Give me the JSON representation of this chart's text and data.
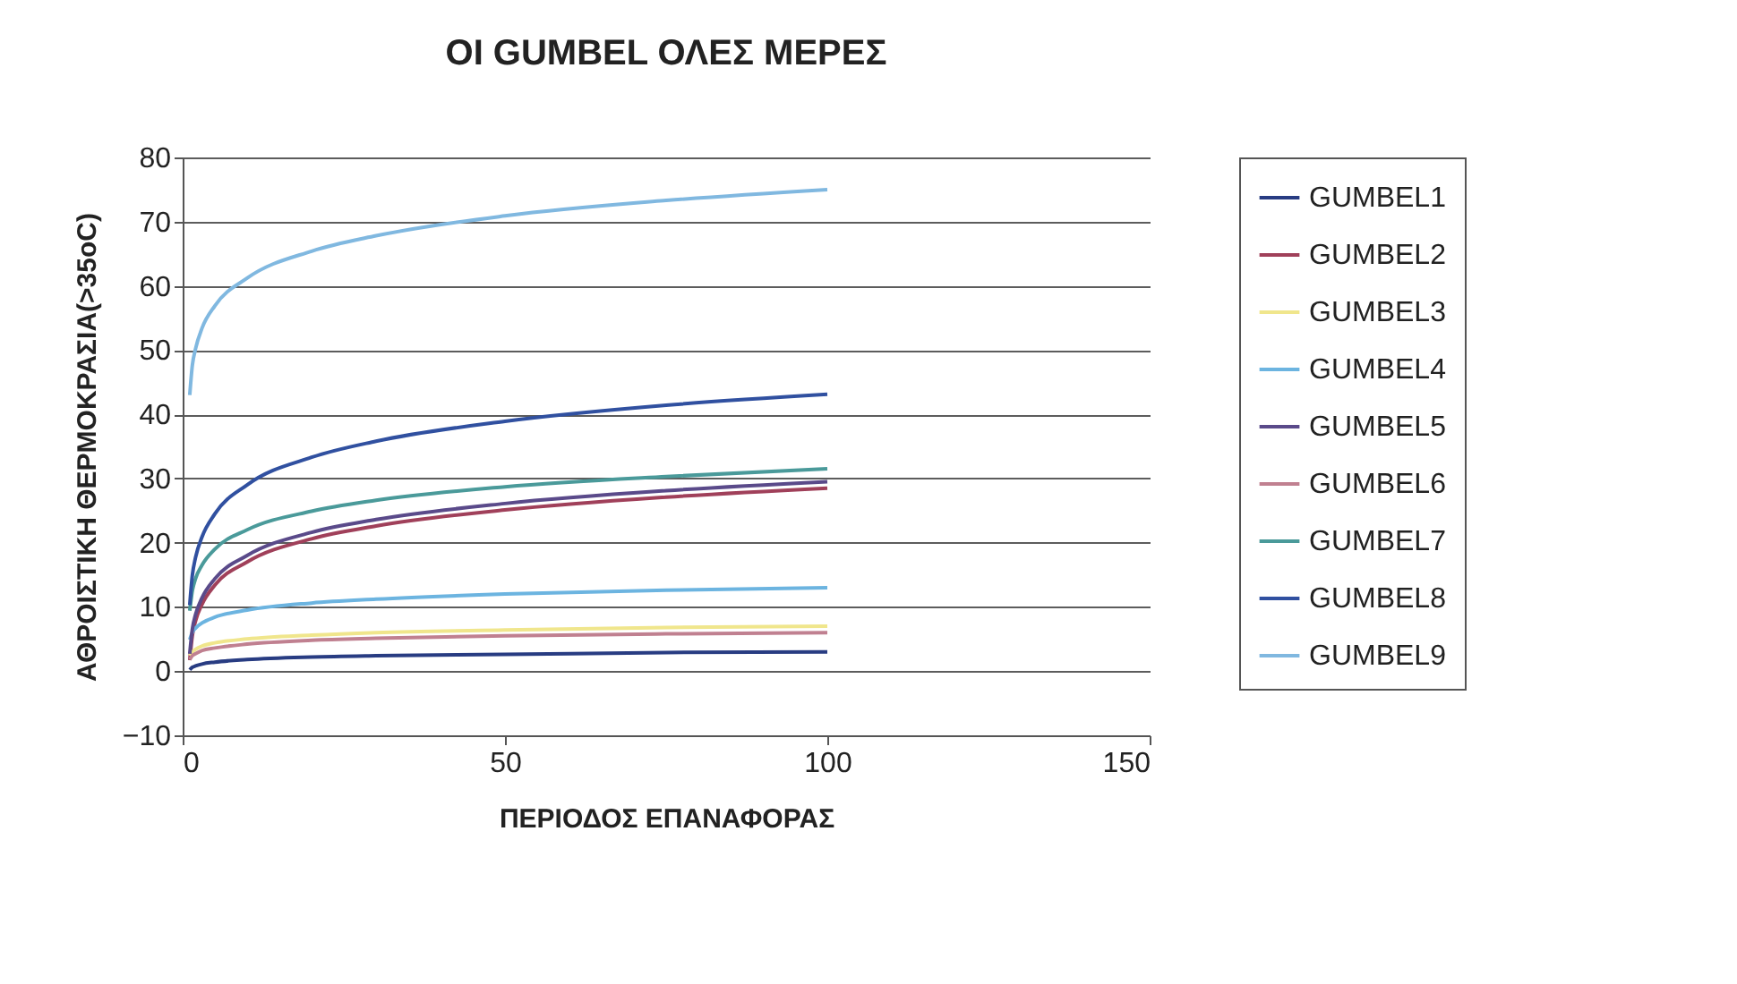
{
  "chart_data": {
    "type": "line",
    "title": "ΟΙ GUMBEL ΟΛΕΣ ΜΕΡΕΣ",
    "xlabel": "ΠΕΡΙΟΔΟΣ ΕΠΑΝΑΦΟΡΑΣ",
    "ylabel": "ΑΘΡΟΙΣΤΙΚΗ ΘΕΡΜΟΚΡΑΣΙΑ(>35oC)",
    "x": [
      1.1,
      1.5,
      2,
      3,
      5,
      10,
      20,
      30,
      50,
      75,
      100
    ],
    "series": [
      {
        "name": "GUMBEL1",
        "color": "#283c82",
        "values": [
          0.2,
          0.6,
          0.8,
          1.1,
          1.4,
          1.8,
          2.2,
          2.4,
          2.6,
          2.9,
          3.0
        ]
      },
      {
        "name": "GUMBEL2",
        "color": "#a0405a",
        "values": [
          1.7,
          5.5,
          7.8,
          10.4,
          13.4,
          17,
          20.6,
          22.6,
          25.1,
          27.1,
          28.5
        ]
      },
      {
        "name": "GUMBEL3",
        "color": "#f0e68c",
        "values": [
          2.4,
          3.0,
          3.4,
          3.9,
          4.4,
          5.0,
          5.6,
          6.0,
          6.4,
          6.8,
          7.0
        ]
      },
      {
        "name": "GUMBEL4",
        "color": "#6cb4e0",
        "values": [
          4.9,
          6.0,
          6.7,
          7.5,
          8.4,
          9.5,
          10.6,
          11.2,
          12.0,
          12.6,
          13.0
        ]
      },
      {
        "name": "GUMBEL5",
        "color": "#5a4a8a",
        "values": [
          2.7,
          6.5,
          8.8,
          11.4,
          14.4,
          18,
          21.6,
          23.6,
          26.1,
          28.1,
          29.5
        ]
      },
      {
        "name": "GUMBEL6",
        "color": "#c08090",
        "values": [
          1.8,
          2.4,
          2.7,
          3.2,
          3.6,
          4.2,
          4.8,
          5.1,
          5.5,
          5.8,
          6.0
        ]
      },
      {
        "name": "GUMBEL7",
        "color": "#4a9a9a",
        "values": [
          9.4,
          12.5,
          14.4,
          16.5,
          19.0,
          22,
          24.9,
          26.6,
          28.7,
          30.3,
          31.5
        ]
      },
      {
        "name": "GUMBEL8",
        "color": "#3050a0",
        "values": [
          10.3,
          14.9,
          17.7,
          20.9,
          24.5,
          29,
          33.3,
          35.8,
          38.9,
          41.4,
          43.1
        ]
      },
      {
        "name": "GUMBEL9",
        "color": "#80b8e0",
        "values": [
          43,
          47.6,
          50.2,
          53.4,
          56.9,
          61.2,
          65.4,
          67.8,
          70.9,
          73.3,
          75
        ]
      }
    ],
    "xlim": [
      0,
      150
    ],
    "xticks": [
      0,
      50,
      100,
      150
    ],
    "ylim": [
      -10,
      80
    ],
    "yticks": [
      -10,
      0,
      10,
      20,
      30,
      40,
      50,
      60,
      70,
      80
    ],
    "grid": "y",
    "legend": "right",
    "marker": "none",
    "line_style": "solid"
  }
}
